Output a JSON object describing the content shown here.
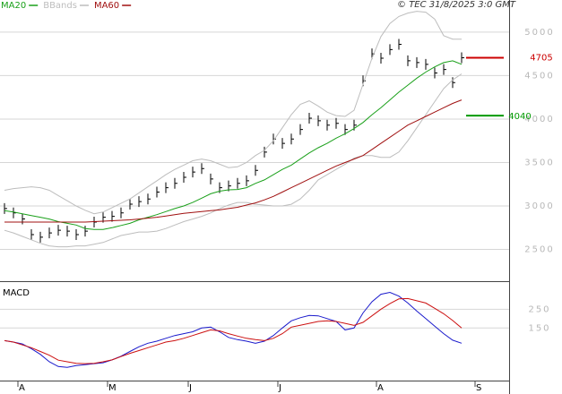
{
  "chart_data": [
    {
      "type": "stock",
      "source": "© TEC 31/8/2025 3:0 GMT",
      "categories": [
        null,
        null,
        "A",
        null,
        null,
        null,
        null,
        null,
        null,
        null,
        null,
        null,
        "M",
        null,
        null,
        null,
        null,
        null,
        null,
        null,
        null,
        "J",
        null,
        null,
        null,
        null,
        null,
        null,
        null,
        null,
        null,
        "J",
        null,
        null,
        null,
        null,
        null,
        null,
        null,
        null,
        null,
        null,
        "A",
        null,
        null,
        null,
        null,
        null,
        null,
        null,
        null,
        null,
        null,
        "S",
        null,
        null,
        null
      ],
      "ylim": [
        2155,
        5370
      ],
      "yticks": [
        2500,
        3000,
        3500,
        4000,
        4500,
        5000
      ],
      "grid": true,
      "series": [
        {
          "color": "#000000",
          "values": [
            2970,
            2920,
            2850,
            2670,
            2640,
            2690,
            2720,
            2710,
            2670,
            2710,
            2815,
            2870,
            2880,
            2920,
            3020,
            3050,
            3080,
            3160,
            3210,
            3260,
            3330,
            3390,
            3430,
            3310,
            3210,
            3230,
            3260,
            3290,
            3410,
            3620,
            3770,
            3720,
            3770,
            3880,
            4010,
            3980,
            3930,
            3950,
            3880,
            3930,
            4440,
            4750,
            4700,
            4800,
            4860,
            4670,
            4650,
            4630,
            4530,
            4570,
            4420,
            4705,
            null,
            null,
            null,
            null,
            null
          ]
        },
        {
          "name": "MA20",
          "color": "#1aa01a",
          "values": [
            2945,
            2930,
            2910,
            2890,
            2870,
            2850,
            2820,
            2800,
            2780,
            2740,
            2730,
            2730,
            2750,
            2775,
            2800,
            2840,
            2870,
            2900,
            2935,
            2970,
            3000,
            3040,
            3090,
            3140,
            3170,
            3185,
            3190,
            3210,
            3260,
            3300,
            3360,
            3420,
            3470,
            3540,
            3610,
            3670,
            3720,
            3780,
            3830,
            3890,
            3960,
            4050,
            4130,
            4220,
            4310,
            4390,
            4470,
            4540,
            4600,
            4650,
            4670,
            4630,
            null,
            null,
            null,
            null,
            null
          ]
        },
        {
          "name": "BBands",
          "color": "#bdbdbd",
          "values": [
            3180,
            3200,
            3210,
            3220,
            3210,
            3180,
            3120,
            3060,
            3000,
            2950,
            2910,
            2930,
            2980,
            3030,
            3080,
            3150,
            3220,
            3290,
            3360,
            3420,
            3470,
            3520,
            3540,
            3520,
            3480,
            3440,
            3450,
            3500,
            3580,
            3640,
            3750,
            3900,
            4050,
            4170,
            4210,
            4150,
            4080,
            4040,
            4030,
            4100,
            4400,
            4700,
            4950,
            5100,
            5180,
            5220,
            5240,
            5230,
            5150,
            4960,
            4920,
            4920,
            null,
            null,
            null,
            null,
            null
          ],
          "lower": [
            2720,
            2690,
            2650,
            2610,
            2570,
            2540,
            2530,
            2530,
            2540,
            2540,
            2560,
            2580,
            2620,
            2660,
            2680,
            2700,
            2700,
            2710,
            2740,
            2780,
            2820,
            2850,
            2880,
            2920,
            2970,
            3010,
            3040,
            3040,
            3020,
            3010,
            3000,
            3000,
            3020,
            3080,
            3180,
            3300,
            3360,
            3420,
            3480,
            3550,
            3580,
            3580,
            3560,
            3560,
            3620,
            3750,
            3900,
            4050,
            4200,
            4350,
            4450,
            4520,
            null,
            null,
            null,
            null,
            null
          ]
        },
        {
          "name": "MA60",
          "color": "#a01010",
          "values": [
            2815,
            2815,
            2815,
            2815,
            2815,
            2815,
            2815,
            2815,
            2815,
            2815,
            2820,
            2825,
            2830,
            2835,
            2840,
            2850,
            2860,
            2870,
            2885,
            2900,
            2915,
            2925,
            2935,
            2945,
            2955,
            2970,
            2985,
            3010,
            3035,
            3070,
            3110,
            3160,
            3210,
            3260,
            3310,
            3360,
            3410,
            3460,
            3500,
            3540,
            3580,
            3650,
            3720,
            3790,
            3860,
            3930,
            3980,
            4030,
            4080,
            4130,
            4180,
            4220,
            null,
            null,
            null,
            null,
            null
          ]
        }
      ],
      "levels": [
        {
          "value": 4705,
          "color": "#cc0000"
        },
        {
          "value": 4040,
          "color": "#009900"
        }
      ]
    },
    {
      "type": "line",
      "title": "MACD",
      "ylim": [
        -130,
        390
      ],
      "yticks": [
        150,
        250
      ],
      "grid": true,
      "series": [
        {
          "color": "#1a1acc",
          "values": [
            83,
            75,
            65,
            40,
            10,
            -30,
            -55,
            -60,
            -50,
            -45,
            -40,
            -35,
            -20,
            0,
            25,
            50,
            69,
            80,
            95,
            110,
            120,
            130,
            150,
            155,
            130,
            100,
            88,
            80,
            69,
            80,
            110,
            150,
            188,
            205,
            217,
            215,
            200,
            185,
            140,
            150,
            230,
            290,
            330,
            340,
            320,
            283,
            240,
            200,
            160,
            120,
            85,
            69,
            null,
            null,
            null,
            null,
            null
          ]
        },
        {
          "color": "#cc1010",
          "values": [
            83,
            75,
            60,
            45,
            25,
            5,
            -21,
            -30,
            -38,
            -40,
            -38,
            -30,
            -20,
            -2,
            15,
            30,
            45,
            60,
            75,
            83,
            95,
            110,
            125,
            140,
            135,
            120,
            107,
            95,
            88,
            83,
            95,
            120,
            155,
            165,
            175,
            185,
            188,
            185,
            175,
            164,
            180,
            215,
            250,
            280,
            305,
            307,
            295,
            283,
            255,
            226,
            190,
            150,
            null,
            null,
            null,
            null,
            null
          ]
        }
      ]
    }
  ]
}
